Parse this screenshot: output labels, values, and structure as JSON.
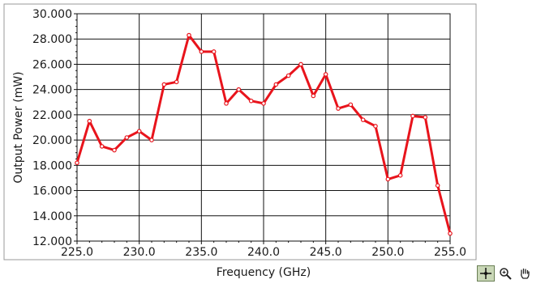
{
  "chart_data": {
    "type": "line",
    "title": "",
    "xlabel": "Frequency (GHz)",
    "ylabel": "Output Power (mW)",
    "xlim": [
      225,
      255
    ],
    "ylim": [
      12,
      30
    ],
    "grid": true,
    "x_ticks": [
      "225.0",
      "230.0",
      "235.0",
      "240.0",
      "245.0",
      "250.0",
      "255.0"
    ],
    "y_ticks": [
      "30.000",
      "28.000",
      "26.000",
      "24.000",
      "22.000",
      "20.000",
      "18.000",
      "16.000",
      "14.000",
      "12.000"
    ],
    "series": [
      {
        "color": "#e8141c",
        "x": [
          225,
          226,
          227,
          228,
          229,
          230,
          231,
          232,
          233,
          234,
          235,
          236,
          237,
          238,
          239,
          240,
          241,
          242,
          243,
          244,
          245,
          246,
          247,
          248,
          249,
          250,
          251,
          252,
          253,
          254,
          255
        ],
        "y": [
          18.2,
          21.5,
          19.5,
          19.2,
          20.2,
          20.7,
          20.0,
          24.4,
          24.6,
          28.3,
          27.0,
          27.0,
          22.9,
          24.0,
          23.1,
          22.9,
          24.4,
          25.1,
          26.0,
          23.5,
          25.2,
          22.5,
          22.8,
          21.6,
          21.1,
          16.9,
          17.2,
          21.9,
          21.8,
          16.4,
          12.6
        ]
      }
    ]
  },
  "toolbar": {
    "tools": [
      "cursor-move-icon",
      "zoom-icon",
      "pan-hand-icon"
    ]
  }
}
